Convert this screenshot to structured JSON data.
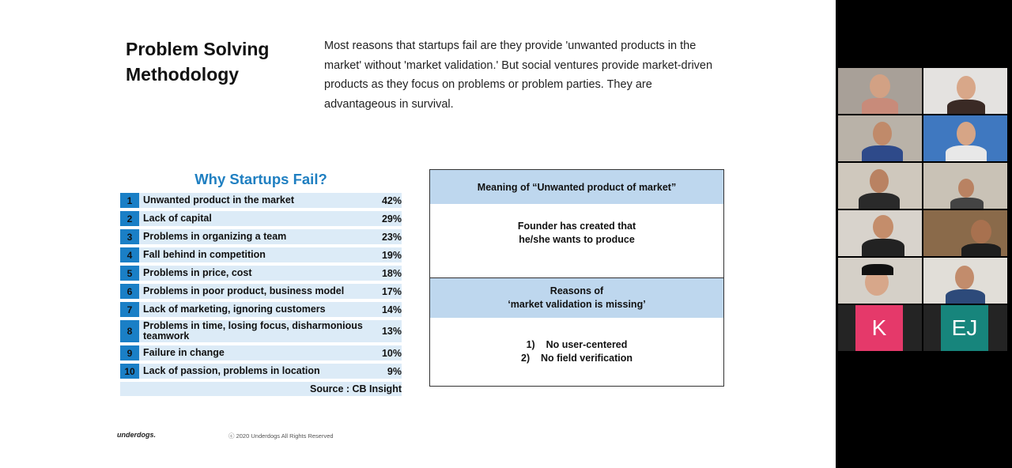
{
  "slide": {
    "title_line1": "Problem Solving",
    "title_line2": "Methodology",
    "intro": "Most reasons that startups fail are they provide 'unwanted products in the market' without 'market validation.' But social ventures provide market-driven products as they focus on problems or problem parties. They are advantageous in survival.",
    "why_title": "Why Startups Fail?",
    "reasons": [
      {
        "num": "1",
        "label": "Unwanted product in the market",
        "pct": "42%"
      },
      {
        "num": "2",
        "label": "Lack of capital",
        "pct": "29%"
      },
      {
        "num": "3",
        "label": "Problems in organizing a team",
        "pct": "23%"
      },
      {
        "num": "4",
        "label": "Fall behind in competition",
        "pct": "19%"
      },
      {
        "num": "5",
        "label": "Problems in price, cost",
        "pct": "18%"
      },
      {
        "num": "6",
        "label": "Problems in poor product, business model",
        "pct": "17%"
      },
      {
        "num": "7",
        "label": "Lack of marketing, ignoring customers",
        "pct": "14%"
      },
      {
        "num": "8",
        "label": "Problems in time, losing focus, disharmonious teamwork",
        "pct": "13%"
      },
      {
        "num": "9",
        "label": "Failure in change",
        "pct": "10%"
      },
      {
        "num": "10",
        "label": "Lack of passion, problems in location",
        "pct": "9%"
      }
    ],
    "source": "Source : CB Insight",
    "box1": {
      "head": "Meaning of “Unwanted product of market”",
      "body_line1": "Founder has created that",
      "body_line2": "he/she wants to produce"
    },
    "box2": {
      "head_line1": "Reasons of",
      "head_line2": "‘market validation is missing’",
      "item1": "1)    No user-centered",
      "item2": "2)    No field verification"
    },
    "footer_logo": "underdogs.",
    "footer_copy": "ⓒ 2020 Underdogs All Rights Reserved"
  },
  "participants": {
    "k_initial": "K",
    "ej_initial": "EJ",
    "k_color": "#e5396a",
    "ej_color": "#17857c"
  }
}
